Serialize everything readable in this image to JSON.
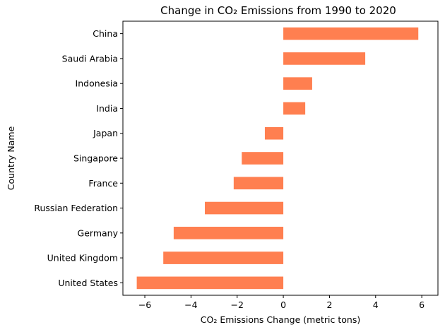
{
  "chart_data": {
    "type": "bar",
    "orientation": "horizontal",
    "title": "Change in CO₂ Emissions from 1990 to 2020",
    "xlabel": "CO₂ Emissions Change (metric tons)",
    "ylabel": "Country Name",
    "categories": [
      "United States",
      "United Kingdom",
      "Germany",
      "Russian Federation",
      "France",
      "Singapore",
      "Japan",
      "India",
      "Indonesia",
      "Saudi Arabia",
      "China"
    ],
    "values": [
      -6.35,
      -5.2,
      -4.75,
      -3.4,
      -2.15,
      -1.8,
      -0.8,
      0.95,
      1.25,
      3.55,
      5.85
    ],
    "xlim": [
      -6.95,
      6.7
    ],
    "xticks": [
      -6,
      -4,
      -2,
      0,
      2,
      4,
      6
    ],
    "xtick_labels": [
      "−6",
      "−4",
      "−2",
      "0",
      "2",
      "4",
      "6"
    ],
    "bar_color": "#ff7f50",
    "grid": false,
    "legend": "none"
  }
}
